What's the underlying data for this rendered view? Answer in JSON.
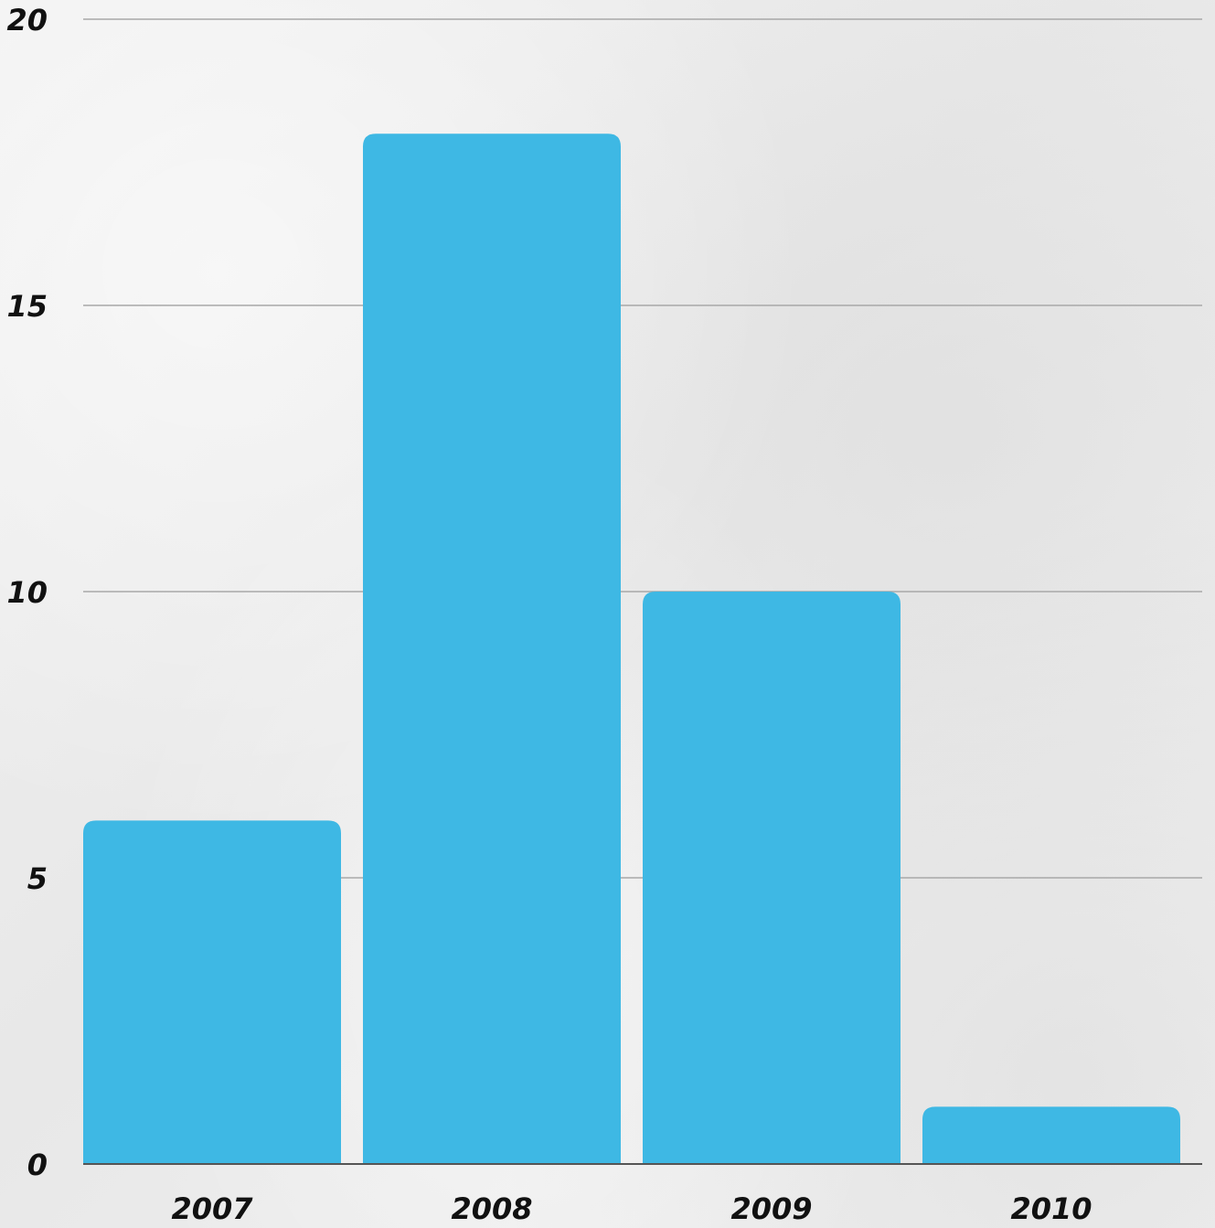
{
  "chart_data": {
    "type": "bar",
    "categories": [
      "2007",
      "2008",
      "2009",
      "2010"
    ],
    "values": [
      6,
      18,
      10,
      1
    ],
    "ylim": [
      0,
      20
    ],
    "yticks": [
      0,
      5,
      10,
      15,
      20
    ],
    "ytick_labels": [
      "0",
      "5",
      "10",
      "15",
      "20"
    ],
    "grid": true,
    "bar_color": "#3eb8e4",
    "grid_color": "#a8a8a8",
    "axis_color": "#555555",
    "text_color": "#111111",
    "background_color": "#efefef"
  }
}
